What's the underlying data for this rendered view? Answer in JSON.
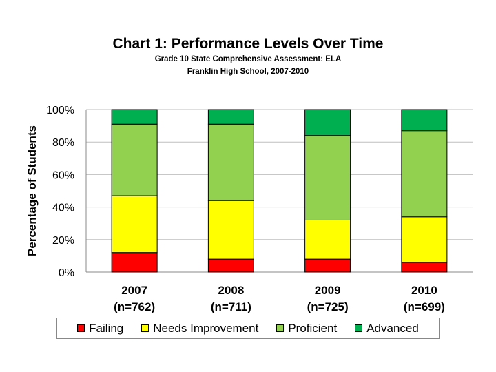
{
  "chart_data": {
    "type": "bar",
    "stacked": true,
    "title": "Chart 1: Performance Levels Over Time",
    "subtitle": [
      "Grade 10 State Comprehensive Assessment: ELA",
      "Franklin High School, 2007-2010"
    ],
    "ylabel": "Percentage of Students",
    "xlabel": "",
    "ylim": [
      0,
      100
    ],
    "yticks": [
      "0%",
      "20%",
      "40%",
      "60%",
      "80%",
      "100%"
    ],
    "grid": true,
    "legend_position": "bottom",
    "categories": [
      {
        "year": "2007",
        "n": "(n=762)"
      },
      {
        "year": "2008",
        "n": "(n=711)"
      },
      {
        "year": "2009",
        "n": "(n=725)"
      },
      {
        "year": "2010",
        "n": "(n=699)"
      }
    ],
    "series": [
      {
        "name": "Failing",
        "color": "#ff0000",
        "values": [
          12,
          8,
          8,
          6
        ]
      },
      {
        "name": "Needs Improvement",
        "color": "#ffff00",
        "values": [
          35,
          36,
          24,
          28
        ]
      },
      {
        "name": "Proficient",
        "color": "#92d050",
        "values": [
          44,
          47,
          52,
          53
        ]
      },
      {
        "name": "Advanced",
        "color": "#00b050",
        "values": [
          9,
          9,
          16,
          13
        ]
      }
    ]
  }
}
